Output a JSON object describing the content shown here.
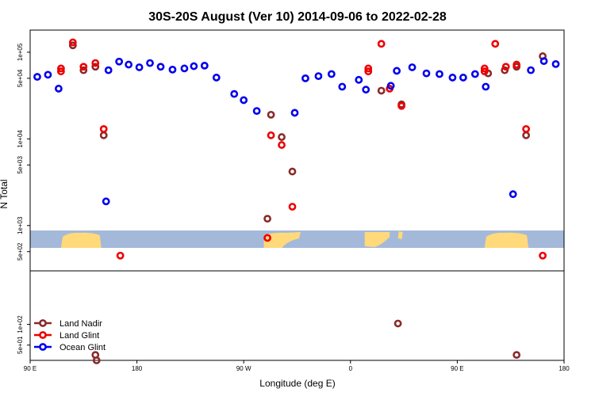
{
  "chart_data": {
    "type": "scatter",
    "title": "30S-20S August (Ver 10)   2014-09-06 to 2022-02-28",
    "xlabel": "Longitude (deg E)",
    "ylabel": "N Total",
    "x_tick_labels": [
      "90 E",
      "180",
      "90 W",
      "0",
      "90 E",
      "180"
    ],
    "x_ticks": [
      90,
      180,
      270,
      360,
      450,
      540
    ],
    "xlim": [
      90,
      540
    ],
    "top_panel": {
      "y_scale": "log",
      "ylim": [
        300,
        180000
      ],
      "y_tick_labels": [
        "5e+02",
        "1e+03",
        "5e+03",
        "1e+04",
        "5e+04",
        "1e+05"
      ],
      "y_ticks": [
        500,
        1000,
        5000,
        10000,
        50000,
        100000
      ],
      "land_mask": {
        "ocean_color": "#a4b9d9",
        "land_color": "#ffd97a",
        "land_segments": [
          {
            "x1": 116,
            "x2": 150,
            "shape": "australia"
          },
          {
            "x1": 287,
            "x2": 318,
            "shape": "south-america"
          },
          {
            "x1": 372,
            "x2": 393,
            "shape": "africa"
          },
          {
            "x1": 400,
            "x2": 404,
            "shape": "madagascar"
          },
          {
            "x1": 473,
            "x2": 510,
            "shape": "australia"
          }
        ]
      }
    },
    "bottom_panel": {
      "y_scale": "log",
      "ylim": [
        30,
        600
      ],
      "y_tick_labels": [
        "5e+01",
        "1e+02"
      ],
      "y_ticks": [
        50,
        100
      ]
    },
    "legend": {
      "position": "bottom-left",
      "entries": [
        "Land Nadir",
        "Land Glint",
        "Ocean Glint"
      ]
    },
    "series": [
      {
        "name": "Land Nadir",
        "color": "#8b2a2a",
        "panel": "top",
        "points": [
          [
            126,
            120000
          ],
          [
            135,
            62000
          ],
          [
            145,
            68000
          ],
          [
            152,
            11000
          ],
          [
            290,
            1200
          ],
          [
            293,
            19000
          ],
          [
            302,
            10500
          ],
          [
            311,
            4200
          ],
          [
            386,
            36000
          ],
          [
            403,
            25000
          ],
          [
            476,
            57000
          ],
          [
            490,
            62000
          ],
          [
            500,
            68000
          ],
          [
            508,
            11000
          ],
          [
            522,
            90000
          ]
        ]
      },
      {
        "name": "Land Glint",
        "color": "#ee0000",
        "panel": "top",
        "points": [
          [
            116,
            60000
          ],
          [
            116,
            65000
          ],
          [
            126,
            130000
          ],
          [
            135,
            68000
          ],
          [
            145,
            75000
          ],
          [
            152,
            13000
          ],
          [
            166,
            450
          ],
          [
            290,
            720
          ],
          [
            293,
            11000
          ],
          [
            302,
            8500
          ],
          [
            311,
            1650
          ],
          [
            375,
            60000
          ],
          [
            375,
            65000
          ],
          [
            386,
            125000
          ],
          [
            393,
            38000
          ],
          [
            403,
            24000
          ],
          [
            473,
            60000
          ],
          [
            473,
            65000
          ],
          [
            482,
            125000
          ],
          [
            491,
            68000
          ],
          [
            500,
            72000
          ],
          [
            508,
            13000
          ],
          [
            522,
            450
          ]
        ]
      },
      {
        "name": "Ocean Glint",
        "color": "#0000ee",
        "panel": "top",
        "points": [
          [
            96,
            52000
          ],
          [
            105,
            55000
          ],
          [
            114,
            38000
          ],
          [
            154,
            1900
          ],
          [
            156,
            62000
          ],
          [
            165,
            78000
          ],
          [
            173,
            72000
          ],
          [
            182,
            67000
          ],
          [
            191,
            75000
          ],
          [
            200,
            68000
          ],
          [
            210,
            63000
          ],
          [
            220,
            65000
          ],
          [
            228,
            69000
          ],
          [
            237,
            70000
          ],
          [
            247,
            51000
          ],
          [
            262,
            33000
          ],
          [
            270,
            28000
          ],
          [
            281,
            21000
          ],
          [
            313,
            20000
          ],
          [
            322,
            50000
          ],
          [
            333,
            53000
          ],
          [
            344,
            56000
          ],
          [
            353,
            40000
          ],
          [
            367,
            48000
          ],
          [
            373,
            37000
          ],
          [
            394,
            41000
          ],
          [
            399,
            61000
          ],
          [
            412,
            67000
          ],
          [
            424,
            57000
          ],
          [
            435,
            56000
          ],
          [
            446,
            51000
          ],
          [
            455,
            51000
          ],
          [
            465,
            56000
          ],
          [
            474,
            40000
          ],
          [
            497,
            2300
          ],
          [
            512,
            62000
          ],
          [
            523,
            79000
          ],
          [
            533,
            73000
          ]
        ]
      },
      {
        "name": "Land Nadir",
        "color": "#8b2a2a",
        "panel": "bottom",
        "points": [
          [
            145,
            36
          ],
          [
            146,
            30
          ],
          [
            400,
            103
          ],
          [
            500,
            36
          ]
        ]
      }
    ]
  }
}
